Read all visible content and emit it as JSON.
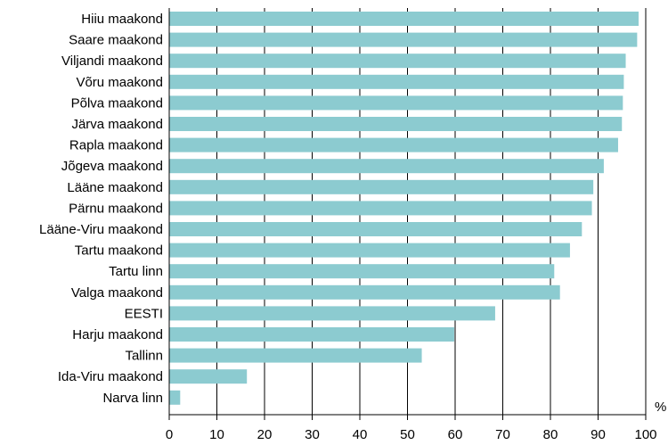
{
  "chart_data": {
    "type": "bar",
    "orientation": "horizontal",
    "categories": [
      "Hiiu maakond",
      "Saare maakond",
      "Viljandi maakond",
      "Võru maakond",
      "Põlva maakond",
      "Järva maakond",
      "Rapla maakond",
      "Jõgeva maakond",
      "Lääne maakond",
      "Pärnu maakond",
      "Lääne-Viru maakond",
      "Tartu maakond",
      "Tartu linn",
      "Valga maakond",
      "EESTI",
      "Harju maakond",
      "Tallinn",
      "Ida-Viru maakond",
      "Narva linn"
    ],
    "values": [
      98.5,
      98.2,
      95.8,
      95.4,
      95.2,
      95.0,
      94.2,
      91.2,
      89.0,
      88.7,
      86.6,
      84.1,
      80.8,
      82.0,
      68.4,
      59.8,
      53.0,
      16.3,
      2.3
    ],
    "xlim": [
      0,
      100
    ],
    "xticks": [
      0,
      10,
      20,
      30,
      40,
      50,
      60,
      70,
      80,
      90,
      100
    ],
    "unit": "%",
    "grid": true,
    "bar_color": "#8CCBD0"
  }
}
